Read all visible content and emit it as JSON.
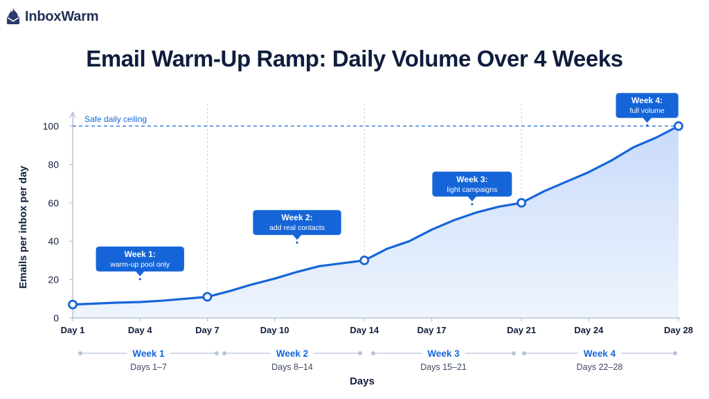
{
  "brand": {
    "name": "InboxWarm"
  },
  "colors": {
    "accent": "#1565d8",
    "fill": "#dbe7fb",
    "text": "#0f1d3d",
    "muted": "#b8c3d6"
  },
  "chart_data": {
    "type": "area",
    "title": "Email Warm-Up Ramp: Daily Volume Over 4 Weeks",
    "xlabel": "Days",
    "ylabel": "Emails per inbox per day",
    "xlim": [
      1,
      28
    ],
    "ylim": [
      0,
      100
    ],
    "yticks": [
      0,
      20,
      40,
      60,
      80,
      100
    ],
    "xticks": [
      {
        "day": 1,
        "label": "Day 1"
      },
      {
        "day": 4,
        "label": "Day 4"
      },
      {
        "day": 7,
        "label": "Day 7"
      },
      {
        "day": 10,
        "label": "Day 10"
      },
      {
        "day": 14,
        "label": "Day 14"
      },
      {
        "day": 17,
        "label": "Day 17"
      },
      {
        "day": 21,
        "label": "Day 21"
      },
      {
        "day": 24,
        "label": "Day 24"
      },
      {
        "day": 28,
        "label": "Day 28"
      }
    ],
    "grid": "vertical dashed at Day 7, 14, 21",
    "series": [
      {
        "x": [
          1,
          2,
          3,
          4,
          5,
          6,
          7,
          8,
          9,
          10,
          11,
          12,
          13,
          14,
          15,
          16,
          17,
          18,
          19,
          20,
          21,
          22,
          23,
          24,
          25,
          26,
          27,
          28
        ],
        "y": [
          7,
          7.5,
          8,
          8.3,
          9,
          10,
          11,
          14,
          17.5,
          20.5,
          24,
          27,
          28.5,
          30,
          36,
          40,
          46,
          51,
          55,
          58,
          60,
          66,
          71,
          76,
          82,
          89,
          94,
          100
        ]
      }
    ],
    "highlight_points": [
      {
        "day": 1,
        "value": 7
      },
      {
        "day": 7,
        "value": 11
      },
      {
        "day": 14,
        "value": 30
      },
      {
        "day": 21,
        "value": 60
      },
      {
        "day": 28,
        "value": 100
      }
    ],
    "reference_line": {
      "value": 100,
      "label": "Safe daily ceiling"
    },
    "annotations": [
      {
        "title": "Week 1:",
        "text": "warm-up pool only",
        "day": 4,
        "value": 21
      },
      {
        "title": "Week 2:",
        "text": "add real contacts",
        "day": 11,
        "value": 40
      },
      {
        "title": "Week 3:",
        "text": "light campaigns",
        "day": 18.8,
        "value": 60
      },
      {
        "title": "Week 4:",
        "text": "full volume",
        "day": 26.6,
        "value": 101
      }
    ],
    "weeks": [
      {
        "label": "Week 1",
        "range": "Days 1–7",
        "start": 1,
        "end": 7
      },
      {
        "label": "Week 2",
        "range": "Days 8–14",
        "start": 8,
        "end": 14
      },
      {
        "label": "Week 3",
        "range": "Days 15–21",
        "start": 15,
        "end": 21
      },
      {
        "label": "Week 4",
        "range": "Days 22–28",
        "start": 22,
        "end": 28
      }
    ]
  }
}
